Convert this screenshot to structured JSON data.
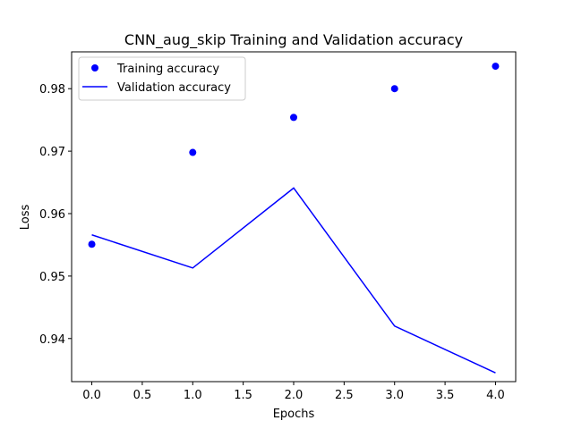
{
  "chart_data": {
    "type": "line",
    "title": "CNN_aug_skip Training and Validation accuracy",
    "xlabel": "Epochs",
    "ylabel": "Loss",
    "x": [
      0,
      1,
      2,
      3,
      4
    ],
    "xlim": [
      -0.2,
      4.2
    ],
    "ylim": [
      0.9331,
      0.9859
    ],
    "xticks": [
      "0.0",
      "0.5",
      "1.0",
      "1.5",
      "2.0",
      "2.5",
      "3.0",
      "3.5",
      "4.0"
    ],
    "yticks": [
      "0.94",
      "0.95",
      "0.96",
      "0.97",
      "0.98"
    ],
    "grid": false,
    "legend_position": "upper-left",
    "series": [
      {
        "name": "Training accuracy",
        "style": "markers",
        "color": "#0000ff",
        "values": [
          0.9551,
          0.9698,
          0.9754,
          0.98,
          0.9836
        ]
      },
      {
        "name": "Validation accuracy",
        "style": "line",
        "color": "#0000ff",
        "values": [
          0.9566,
          0.9513,
          0.9641,
          0.942,
          0.9345
        ]
      }
    ]
  }
}
